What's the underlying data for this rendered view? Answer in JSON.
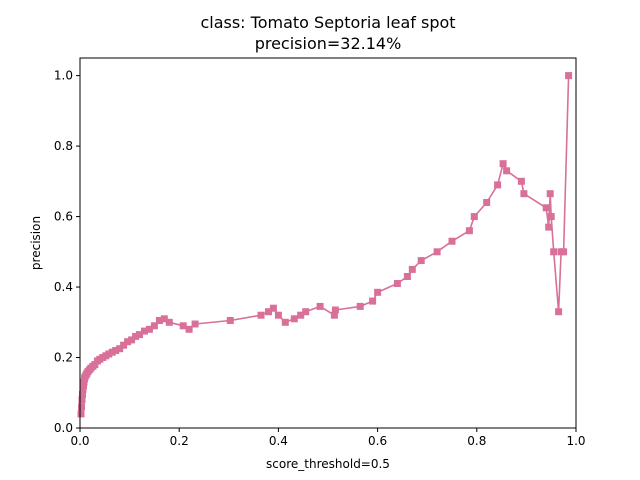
{
  "chart_data": {
    "type": "line",
    "title": "class: Tomato Septoria leaf spot",
    "subtitle": "precision=32.14%",
    "xlabel": "score_threshold=0.5",
    "ylabel": "precision",
    "xlim": [
      0,
      1
    ],
    "ylim": [
      0,
      1.05
    ],
    "xticks": [
      "0.0",
      "0.2",
      "0.4",
      "0.6",
      "0.8",
      "1.0"
    ],
    "yticks": [
      "0.0",
      "0.2",
      "0.4",
      "0.6",
      "0.8",
      "1.0"
    ],
    "grid": false,
    "marker": "square",
    "color": "#d8709a",
    "series": [
      {
        "x": [
          0.002,
          0.003,
          0.004,
          0.005,
          0.006,
          0.007,
          0.008,
          0.009,
          0.01,
          0.012,
          0.014,
          0.016,
          0.019,
          0.022,
          0.026,
          0.03,
          0.035,
          0.04,
          0.046,
          0.052,
          0.058,
          0.065,
          0.072,
          0.08,
          0.088,
          0.096,
          0.104,
          0.112,
          0.12,
          0.13,
          0.14,
          0.15,
          0.16,
          0.17,
          0.18,
          0.208,
          0.22,
          0.232,
          0.303,
          0.365,
          0.38,
          0.39,
          0.4,
          0.414,
          0.432,
          0.445,
          0.455,
          0.484,
          0.513,
          0.515,
          0.565,
          0.59,
          0.6,
          0.64,
          0.66,
          0.67,
          0.688,
          0.72,
          0.75,
          0.785,
          0.795,
          0.82,
          0.842,
          0.853,
          0.86,
          0.89,
          0.895,
          0.94,
          0.945,
          0.948,
          0.95,
          0.955,
          0.965,
          0.97,
          0.975,
          0.985
        ],
        "values": [
          0.04,
          0.06,
          0.08,
          0.095,
          0.11,
          0.12,
          0.13,
          0.14,
          0.145,
          0.15,
          0.155,
          0.16,
          0.165,
          0.17,
          0.175,
          0.18,
          0.19,
          0.195,
          0.2,
          0.205,
          0.21,
          0.215,
          0.22,
          0.225,
          0.235,
          0.245,
          0.25,
          0.26,
          0.265,
          0.275,
          0.28,
          0.29,
          0.305,
          0.31,
          0.3,
          0.29,
          0.28,
          0.295,
          0.305,
          0.32,
          0.33,
          0.34,
          0.32,
          0.3,
          0.31,
          0.32,
          0.33,
          0.345,
          0.32,
          0.335,
          0.345,
          0.36,
          0.385,
          0.41,
          0.43,
          0.45,
          0.475,
          0.5,
          0.53,
          0.56,
          0.6,
          0.64,
          0.69,
          0.75,
          0.73,
          0.7,
          0.665,
          0.625,
          0.57,
          0.665,
          0.6,
          0.5,
          0.33,
          0.5,
          0.5,
          1.0
        ]
      }
    ]
  }
}
